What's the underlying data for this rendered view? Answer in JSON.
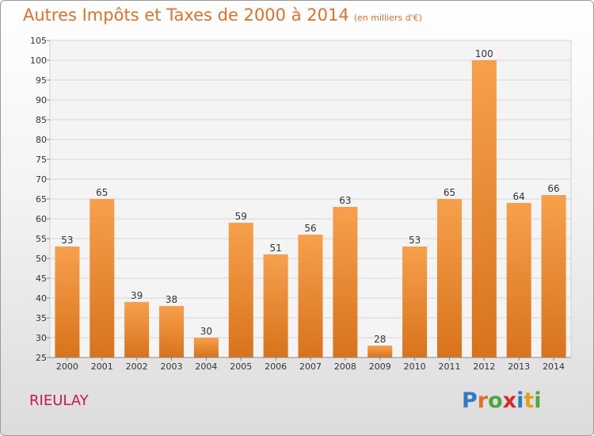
{
  "header": {
    "title": "Autres Impôts et Taxes de 2000 à 2014",
    "unit": "(en milliers d'€)"
  },
  "footer": {
    "commune": "RIEULAY",
    "brand": "Proxiti",
    "brand_letters": [
      "P",
      "r",
      "o",
      "x",
      "i",
      "t",
      "i"
    ],
    "brand_colors": [
      "#2e7bc4",
      "#e0702a",
      "#4aa83c",
      "#d82a2a",
      "#2e7bc4",
      "#e0a020",
      "#4aa83c"
    ]
  },
  "chart_data": {
    "type": "bar",
    "title": "Autres Impôts et Taxes de 2000 à 2014",
    "subtitle": "(en milliers d'€)",
    "categories": [
      "2000",
      "2001",
      "2002",
      "2003",
      "2004",
      "2005",
      "2006",
      "2007",
      "2008",
      "2009",
      "2010",
      "2011",
      "2012",
      "2013",
      "2014"
    ],
    "values": [
      53,
      65,
      39,
      38,
      30,
      59,
      51,
      56,
      63,
      28,
      53,
      65,
      100,
      64,
      66
    ],
    "ylim": [
      25,
      105
    ],
    "yticks": [
      25,
      30,
      35,
      40,
      45,
      50,
      55,
      60,
      65,
      70,
      75,
      80,
      85,
      90,
      95,
      100,
      105
    ],
    "grid": true,
    "bar_color_top": "#f7a04c",
    "bar_color_bottom": "#d8731c"
  }
}
